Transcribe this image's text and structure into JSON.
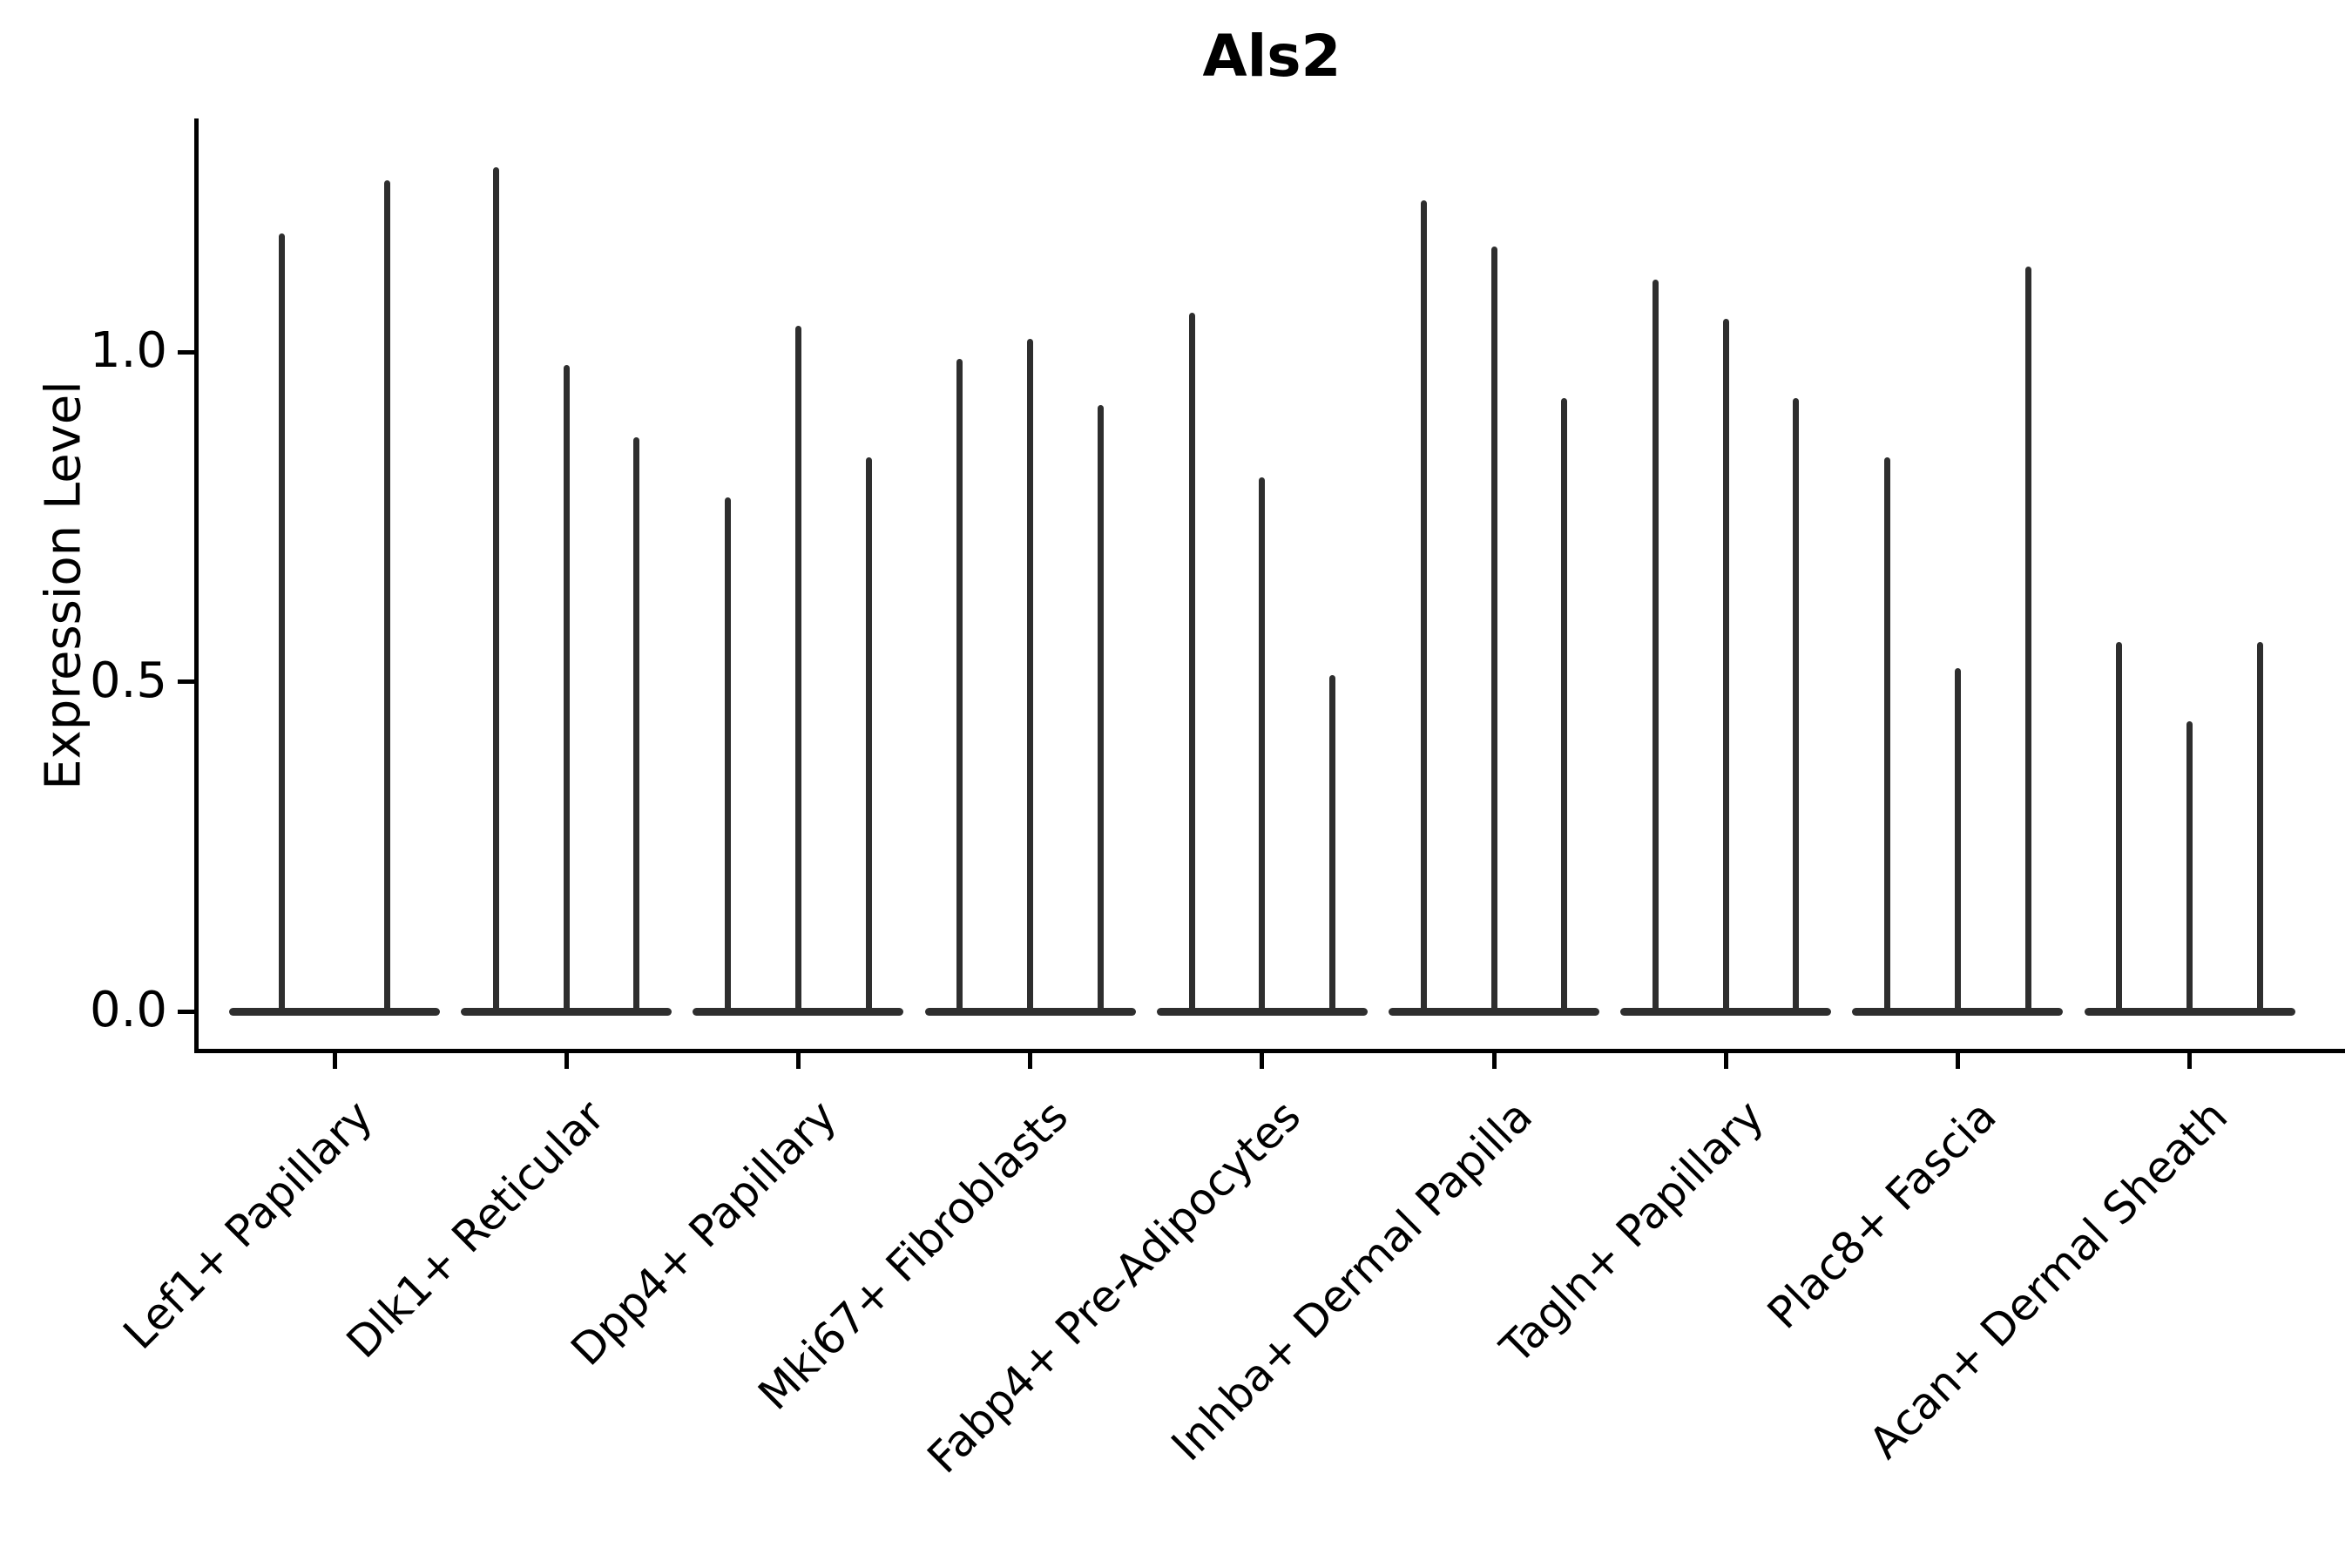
{
  "chart_data": {
    "type": "violin",
    "title": "Als2",
    "ylabel": "Expression Level",
    "xlabel": "",
    "yticks": [
      0.0,
      0.5,
      1.0
    ],
    "ylim": [
      -0.06,
      1.35
    ],
    "grid": false,
    "legend": "none",
    "baseline_value": 0.0,
    "categories": [
      "Lef1+ Papillary",
      "Dlk1+ Reticular",
      "Dpp4+ Papillary",
      "Mki67+ Fibroblasts",
      "Fabp4+ Pre-Adipocytes",
      "Inhba+ Dermal Papilla",
      "Tagln+ Papillary",
      "Plac8+ Fascia",
      "Acan+ Dermal Sheath"
    ],
    "series": [
      {
        "category": "Lef1+ Papillary",
        "violin_maxima": [
          1.18,
          1.26
        ]
      },
      {
        "category": "Dlk1+ Reticular",
        "violin_maxima": [
          1.28,
          0.98,
          0.87
        ]
      },
      {
        "category": "Dpp4+ Papillary",
        "violin_maxima": [
          0.78,
          1.04,
          0.84
        ]
      },
      {
        "category": "Mki67+ Fibroblasts",
        "violin_maxima": [
          0.99,
          1.02,
          0.92
        ]
      },
      {
        "category": "Fabp4+ Pre-Adipocytes",
        "violin_maxima": [
          1.06,
          0.81,
          0.51
        ]
      },
      {
        "category": "Inhba+ Dermal Papilla",
        "violin_maxima": [
          1.23,
          1.16,
          0.93
        ]
      },
      {
        "category": "Tagln+ Papillary",
        "violin_maxima": [
          1.11,
          1.05,
          0.93
        ]
      },
      {
        "category": "Plac8+ Fascia",
        "violin_maxima": [
          0.84,
          0.52,
          1.13
        ]
      },
      {
        "category": "Acan+ Dermal Sheath",
        "violin_maxima": [
          0.56,
          0.44,
          0.56
        ]
      }
    ],
    "colors": {
      "violin": "#2e2e2e",
      "axis": "#000000",
      "text": "#000000",
      "background": "#ffffff"
    }
  }
}
